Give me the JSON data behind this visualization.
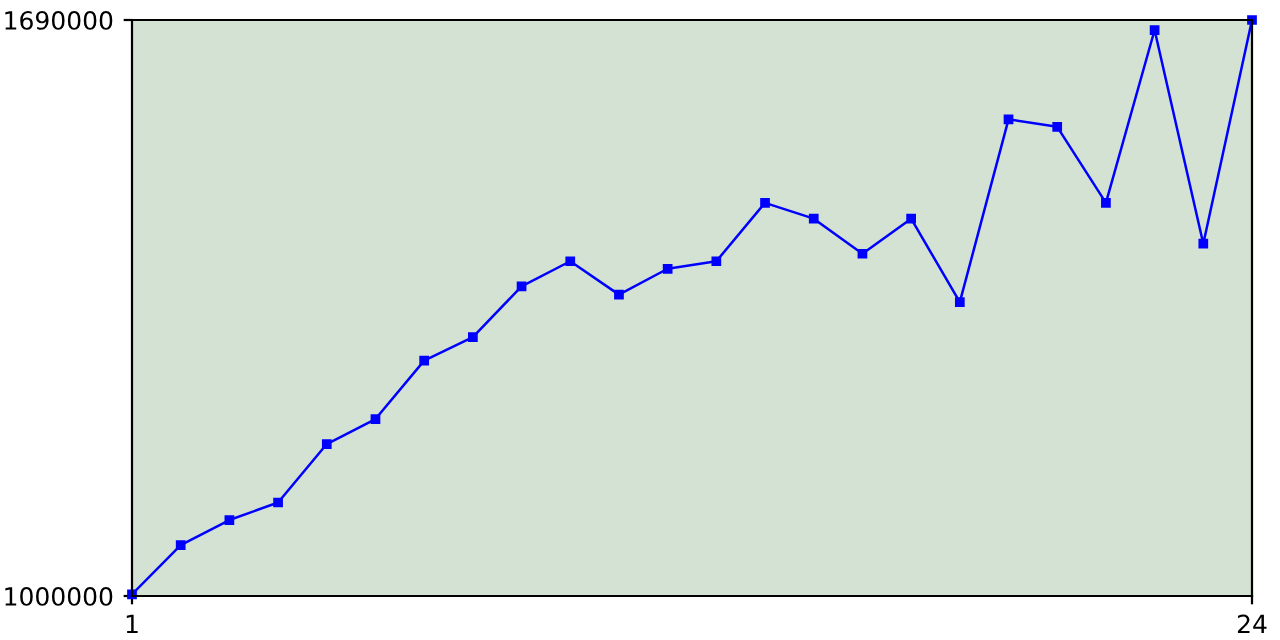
{
  "chart_data": {
    "type": "line",
    "x": [
      1,
      2,
      3,
      4,
      5,
      6,
      7,
      8,
      9,
      10,
      11,
      12,
      13,
      14,
      15,
      16,
      17,
      18,
      19,
      20,
      21,
      22,
      23,
      24
    ],
    "series": [
      {
        "color": "#0000ff",
        "values": [
          1002000,
          1061000,
          1091000,
          1112000,
          1182000,
          1212000,
          1282000,
          1310000,
          1371000,
          1401000,
          1361000,
          1392000,
          1401000,
          1471000,
          1452000,
          1410000,
          1452000,
          1352000,
          1571000,
          1562000,
          1471000,
          1678000,
          1422000,
          1690000
        ]
      }
    ],
    "xlim": [
      1,
      24
    ],
    "ylim": [
      1000000,
      1690000
    ],
    "xticks": [
      1,
      24
    ],
    "yticks": [
      1000000,
      1690000
    ],
    "marker": "square",
    "grid": false,
    "legend": false
  }
}
